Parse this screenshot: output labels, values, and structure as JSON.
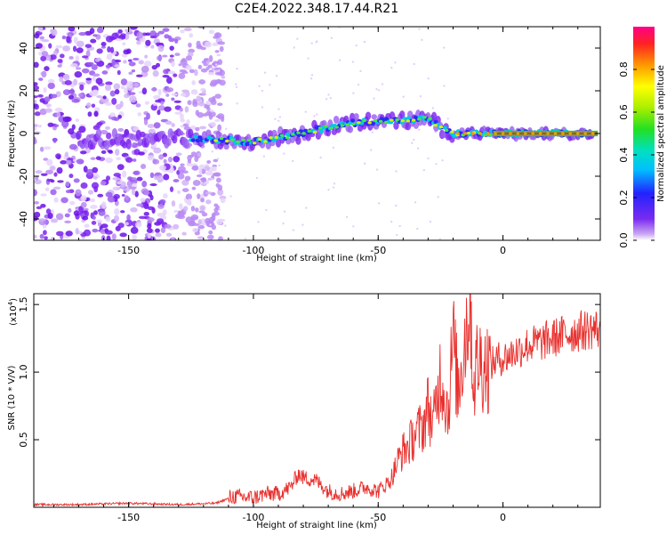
{
  "figure": {
    "title": "C2E4.2022.348.17.44.R21"
  },
  "chart_data": [
    {
      "type": "heatmap",
      "panel": "spectrogram",
      "xlabel": "Height of straight line (km)",
      "ylabel": "Frequency (Hz)",
      "xlim": [
        -188,
        39
      ],
      "ylim": [
        -50,
        50
      ],
      "xticks": [
        -150,
        -100,
        -50,
        0
      ],
      "yticks": [
        -40,
        -20,
        0,
        20,
        40
      ],
      "colormap": "rainbow (purple → blue → cyan → green → yellow → orange → red)",
      "colorbar": {
        "label": "Normalized spectral amplitude",
        "range": [
          0,
          1
        ],
        "ticks": [
          0.0,
          0.2,
          0.4,
          0.6,
          0.8
        ]
      },
      "tone_track": [
        {
          "x": -165,
          "y": -3
        },
        {
          "x": -125,
          "y": -2
        },
        {
          "x": -100,
          "y": -4
        },
        {
          "x": -90,
          "y": -2
        },
        {
          "x": -80,
          "y": 0
        },
        {
          "x": -70,
          "y": 3
        },
        {
          "x": -60,
          "y": 5
        },
        {
          "x": -50,
          "y": 6
        },
        {
          "x": -40,
          "y": 6
        },
        {
          "x": -30,
          "y": 7
        },
        {
          "x": -24,
          "y": 2
        },
        {
          "x": -20,
          "y": 0
        },
        {
          "x": -10,
          "y": 0
        },
        {
          "x": 0,
          "y": 0
        },
        {
          "x": 10,
          "y": 0
        },
        {
          "x": 20,
          "y": 0
        },
        {
          "x": 38,
          "y": 0
        }
      ],
      "noise_region_x": [
        -188,
        -120
      ],
      "grid": false
    },
    {
      "type": "line",
      "panel": "snr",
      "xlabel": "Height of straight line (km)",
      "ylabel": "SNR (10 * V/V)",
      "scale_label": "(x10",
      "scale_exponent": "4",
      "scale_suffix": ")",
      "xlim": [
        -188,
        39
      ],
      "ylim": [
        0.0,
        1.58
      ],
      "xticks": [
        -150,
        -100,
        -50,
        0
      ],
      "yticks": [
        0.5,
        1.0,
        1.5
      ],
      "color": "#e8312e",
      "series": [
        {
          "x": [
            -188,
            -170,
            -150,
            -130,
            -115,
            -108,
            -100,
            -95,
            -90,
            -85,
            -82,
            -80,
            -75,
            -70,
            -65,
            -60,
            -55,
            -50,
            -45,
            -42,
            -40,
            -38,
            -35,
            -32,
            -30,
            -28,
            -25,
            -22,
            -20,
            -18,
            -15,
            -13,
            -12,
            -10,
            -8,
            -5,
            -2,
            0,
            5,
            10,
            15,
            20,
            25,
            30,
            35,
            39
          ],
          "y": [
            0.02,
            0.02,
            0.03,
            0.02,
            0.03,
            0.08,
            0.07,
            0.1,
            0.1,
            0.15,
            0.25,
            0.22,
            0.2,
            0.12,
            0.1,
            0.12,
            0.15,
            0.12,
            0.2,
            0.35,
            0.42,
            0.45,
            0.55,
            0.6,
            0.75,
            0.6,
            1.0,
            0.7,
            1.25,
            0.85,
            1.3,
            1.58,
            0.9,
            1.1,
            1.05,
            1.05,
            1.1,
            1.1,
            1.15,
            1.2,
            1.22,
            1.25,
            1.28,
            1.3,
            1.32,
            1.32
          ]
        }
      ],
      "grid": false
    }
  ]
}
